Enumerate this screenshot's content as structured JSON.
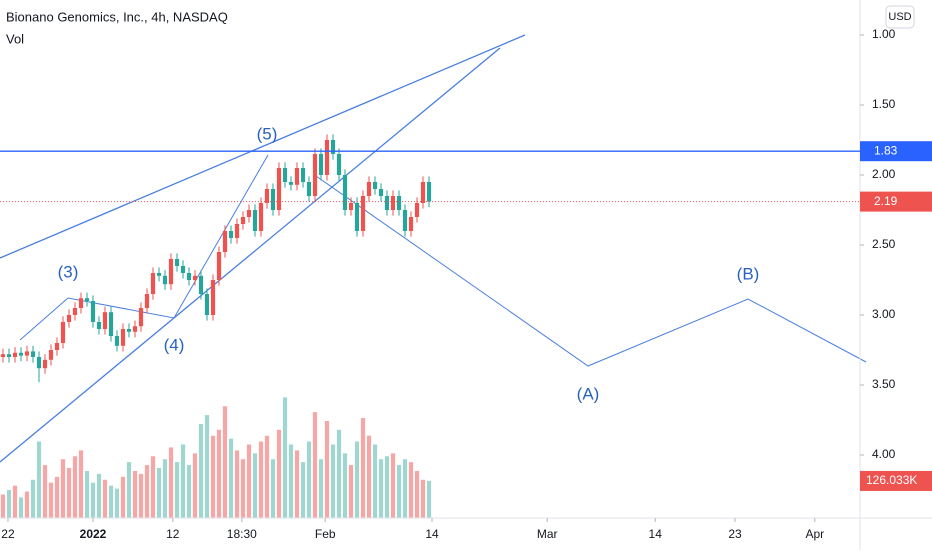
{
  "chart_data": {
    "type": "candlestick",
    "title": "Bionano Genomics, Inc., 4h, NASDAQ",
    "volume_label": "Vol",
    "currency": "USD",
    "open": [
      3.3,
      3.28,
      3.3,
      3.27,
      3.29,
      3.26,
      3.3,
      3.38,
      3.32,
      3.25,
      3.2,
      3.05,
      3.0,
      2.95,
      2.88,
      2.9,
      3.05,
      3.1,
      2.98,
      3.15,
      3.22,
      3.1,
      3.12,
      3.08,
      2.95,
      2.85,
      2.7,
      2.72,
      2.78,
      2.6,
      2.65,
      2.7,
      2.75,
      2.72,
      2.85,
      3.0,
      2.75,
      2.55,
      2.4,
      2.45,
      2.35,
      2.3,
      2.25,
      2.4,
      2.2,
      2.1,
      2.25,
      1.95,
      2.05,
      2.07,
      1.95,
      2.05,
      2.15,
      1.85,
      2.0,
      1.75,
      1.85,
      2.0,
      2.25,
      2.2,
      2.4,
      2.15,
      2.05,
      2.1,
      2.15,
      2.25,
      2.15,
      2.25,
      2.4,
      2.3,
      2.2,
      2.05
    ],
    "high": [
      3.34,
      3.34,
      3.34,
      3.33,
      3.33,
      3.34,
      3.48,
      3.42,
      3.36,
      3.29,
      3.24,
      3.09,
      3.04,
      2.99,
      2.94,
      3.09,
      3.14,
      3.14,
      3.19,
      3.26,
      3.26,
      3.16,
      3.16,
      3.12,
      2.99,
      2.89,
      2.76,
      2.82,
      2.82,
      2.69,
      2.74,
      2.79,
      2.79,
      2.89,
      3.04,
      3.04,
      2.79,
      2.59,
      2.49,
      2.49,
      2.39,
      2.34,
      2.44,
      2.44,
      2.24,
      2.29,
      2.29,
      2.09,
      2.11,
      2.11,
      2.09,
      2.19,
      2.19,
      2.04,
      2.04,
      1.89,
      2.04,
      2.29,
      2.29,
      2.44,
      2.44,
      2.19,
      2.14,
      2.19,
      2.29,
      2.29,
      2.29,
      2.44,
      2.44,
      2.34,
      2.24,
      2.23
    ],
    "low": [
      3.24,
      3.24,
      3.23,
      3.23,
      3.22,
      3.22,
      3.26,
      3.28,
      3.21,
      3.16,
      3.01,
      2.96,
      2.91,
      2.84,
      2.84,
      2.86,
      3.01,
      2.94,
      2.94,
      3.11,
      3.06,
      3.06,
      3.04,
      2.91,
      2.81,
      2.66,
      2.66,
      2.68,
      2.56,
      2.56,
      2.61,
      2.66,
      2.68,
      2.68,
      2.81,
      2.71,
      2.51,
      2.36,
      2.36,
      2.31,
      2.26,
      2.21,
      2.21,
      2.16,
      2.06,
      2.06,
      1.91,
      1.91,
      2.01,
      1.91,
      1.91,
      2.01,
      1.81,
      1.81,
      1.71,
      1.71,
      1.81,
      1.96,
      2.16,
      2.16,
      2.11,
      2.01,
      2.01,
      2.06,
      2.11,
      2.11,
      2.11,
      2.21,
      2.26,
      2.16,
      2.01,
      2.01
    ],
    "close": [
      3.28,
      3.3,
      3.27,
      3.29,
      3.26,
      3.3,
      3.38,
      3.32,
      3.25,
      3.2,
      3.05,
      3.0,
      2.95,
      2.88,
      2.9,
      3.05,
      3.1,
      2.98,
      3.15,
      3.22,
      3.1,
      3.12,
      3.08,
      2.95,
      2.85,
      2.7,
      2.72,
      2.78,
      2.6,
      2.65,
      2.7,
      2.75,
      2.72,
      2.85,
      3.0,
      2.75,
      2.55,
      2.4,
      2.45,
      2.35,
      2.3,
      2.25,
      2.4,
      2.2,
      2.1,
      2.25,
      1.95,
      2.05,
      2.07,
      1.95,
      2.05,
      2.15,
      1.85,
      2.0,
      1.75,
      1.85,
      2.0,
      2.25,
      2.2,
      2.4,
      2.15,
      2.05,
      2.1,
      2.15,
      2.25,
      2.15,
      2.25,
      2.4,
      2.3,
      2.2,
      2.05,
      2.19
    ],
    "volume": [
      80000,
      95000,
      110000,
      70000,
      90000,
      130000,
      260000,
      180000,
      120000,
      140000,
      200000,
      170000,
      210000,
      230000,
      160000,
      120000,
      150000,
      130000,
      110000,
      100000,
      140000,
      190000,
      160000,
      150000,
      180000,
      210000,
      170000,
      200000,
      240000,
      190000,
      250000,
      180000,
      220000,
      320000,
      350000,
      280000,
      300000,
      380000,
      270000,
      230000,
      200000,
      250000,
      220000,
      260000,
      280000,
      200000,
      300000,
      410000,
      250000,
      230000,
      190000,
      260000,
      360000,
      200000,
      330000,
      250000,
      300000,
      220000,
      180000,
      260000,
      340000,
      280000,
      250000,
      200000,
      210000,
      220000,
      180000,
      200000,
      190000,
      160000,
      130000,
      126033
    ],
    "last_volume_label": "126.033K",
    "up_color": "#26a69a",
    "down_color": "#ef5350",
    "volume_up_color": "#9fd6cf",
    "volume_down_color": "#f5a6a5",
    "ylim": [
      0.75,
      4.45
    ],
    "inverted": true,
    "vol_ylim": [
      0,
      500000
    ],
    "yticks": [
      {
        "value": 1,
        "label": "1.00"
      },
      {
        "value": 1.5,
        "label": "1.50"
      },
      {
        "value": 2,
        "label": "2.00"
      },
      {
        "value": 2.5,
        "label": "2.50"
      },
      {
        "value": 3,
        "label": "3.00"
      },
      {
        "value": 3.5,
        "label": "3.50"
      },
      {
        "value": 4,
        "label": "4.00"
      }
    ],
    "xlim": [
      -0.5,
      142.83
    ],
    "xticks": [
      {
        "value": 0.83,
        "label": "22"
      },
      {
        "value": 15,
        "label": "2022"
      },
      {
        "value": 28.3,
        "label": "12"
      },
      {
        "value": 39.8,
        "label": "18:30"
      },
      {
        "value": 53.7,
        "label": "Feb"
      },
      {
        "value": 71.5,
        "label": "14"
      },
      {
        "value": 90.7,
        "label": "Mar"
      },
      {
        "value": 108.7,
        "label": "14"
      },
      {
        "value": 122,
        "label": "23"
      },
      {
        "value": 135.3,
        "label": "Apr"
      }
    ],
    "hline": {
      "value": 1.83,
      "label": "1.83",
      "color": "#2962ff"
    },
    "last_price": {
      "value": 2.19,
      "label": "2.19",
      "color": "#ef5350"
    },
    "annotations": [
      "(3)",
      "(4)",
      "(5)",
      "(A)",
      "(B)"
    ]
  }
}
